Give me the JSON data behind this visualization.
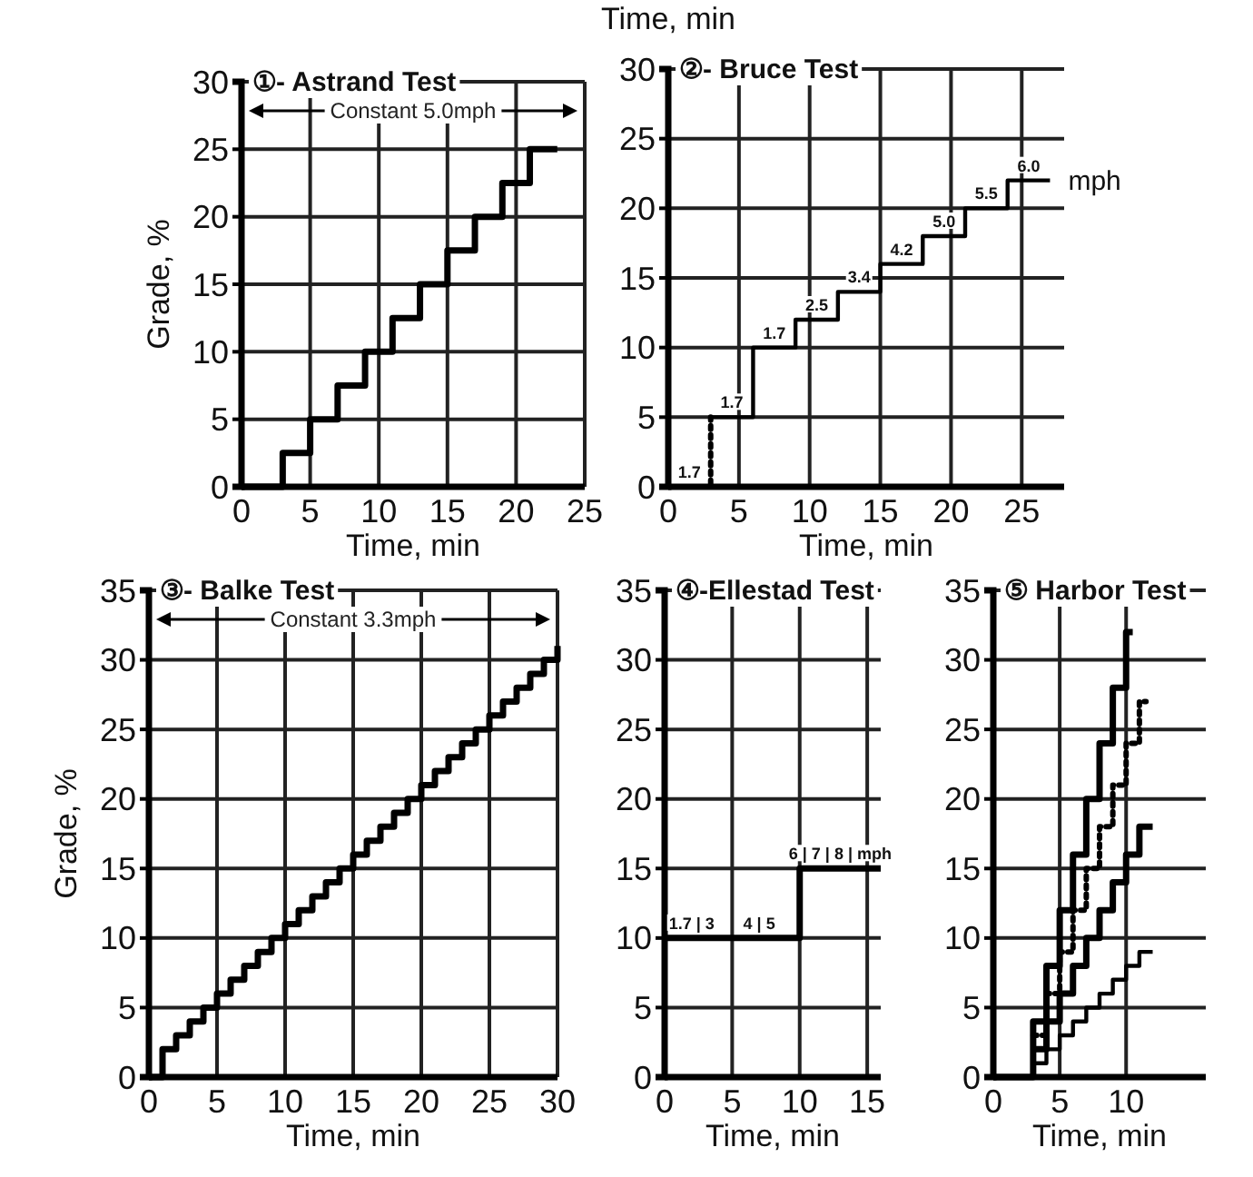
{
  "chart_data": [
    {
      "type": "step",
      "title": "①- Astrand Test",
      "xlabel": "Time, min",
      "ylabel": "Grade, %",
      "xlim": [
        0,
        25
      ],
      "ylim": [
        0,
        30
      ],
      "xticks": [
        0,
        5,
        10,
        15,
        20,
        25
      ],
      "yticks": [
        0,
        5,
        10,
        15,
        20,
        25,
        30
      ],
      "grid": true,
      "series": [
        {
          "color": "#000000",
          "line_style": "solid",
          "x": [
            0,
            3,
            5,
            7,
            9,
            11,
            13,
            15,
            17,
            19,
            21,
            23
          ],
          "values": [
            0,
            2.5,
            5,
            7.5,
            10,
            12.5,
            15,
            17.5,
            20,
            22.5,
            25,
            25
          ]
        }
      ],
      "annotations": [
        "Constant 5.0mph"
      ]
    },
    {
      "type": "step",
      "title": "②- Bruce Test",
      "xlabel": "Time, min",
      "xlim": [
        0,
        28
      ],
      "ylim": [
        0,
        30
      ],
      "xticks": [
        0,
        5,
        10,
        15,
        20,
        25
      ],
      "yticks": [
        0,
        5,
        10,
        15,
        20,
        25,
        30
      ],
      "grid": true,
      "series": [
        {
          "color": "#000000",
          "line_style": "dotted",
          "x": [
            0,
            3
          ],
          "values": [
            0,
            5
          ]
        },
        {
          "color": "#000000",
          "line_style": "solid",
          "x": [
            3,
            6,
            9,
            12,
            15,
            18,
            21,
            24,
            27
          ],
          "values": [
            5,
            10,
            12,
            14,
            16,
            18,
            20,
            22,
            22
          ]
        }
      ],
      "annotations": [
        "Time, min",
        {
          "text": "1.7",
          "x": 1.5,
          "y": 0
        },
        {
          "text": "1.7",
          "x": 4.5,
          "y": 5
        },
        {
          "text": "1.7",
          "x": 7.5,
          "y": 10
        },
        {
          "text": "2.5",
          "x": 10.5,
          "y": 12
        },
        {
          "text": "3.4",
          "x": 13.5,
          "y": 14
        },
        {
          "text": "4.2",
          "x": 16.5,
          "y": 16
        },
        {
          "text": "5.0",
          "x": 19.5,
          "y": 18
        },
        {
          "text": "5.5",
          "x": 22.5,
          "y": 20
        },
        {
          "text": "6.0",
          "x": 25.5,
          "y": 22
        },
        "mph"
      ]
    },
    {
      "type": "step",
      "title": "③- Balke Test",
      "xlabel": "Time, min",
      "ylabel": "Grade, %",
      "xlim": [
        0,
        30
      ],
      "ylim": [
        0,
        35
      ],
      "xticks": [
        0,
        5,
        10,
        15,
        20,
        25,
        30
      ],
      "yticks": [
        0,
        5,
        10,
        15,
        20,
        25,
        30,
        35
      ],
      "grid": true,
      "series": [
        {
          "color": "#000000",
          "line_style": "solid",
          "x": [
            0,
            1,
            2,
            3,
            4,
            5,
            6,
            7,
            8,
            9,
            10,
            11,
            12,
            13,
            14,
            15,
            16,
            17,
            18,
            19,
            20,
            21,
            22,
            23,
            24,
            25,
            26,
            27,
            28,
            29,
            30
          ],
          "values": [
            0,
            2,
            3,
            4,
            5,
            6,
            7,
            8,
            9,
            10,
            11,
            12,
            13,
            14,
            15,
            16,
            17,
            18,
            19,
            20,
            21,
            22,
            23,
            24,
            25,
            26,
            27,
            28,
            29,
            30,
            31
          ]
        }
      ],
      "annotations": [
        "Constant 3.3mph"
      ]
    },
    {
      "type": "step",
      "title": "④-Ellestad Test",
      "xlabel": "Time, min",
      "xlim": [
        0,
        16
      ],
      "ylim": [
        0,
        35
      ],
      "xticks": [
        0,
        5,
        10,
        15
      ],
      "yticks": [
        0,
        5,
        10,
        15,
        20,
        25,
        30,
        35
      ],
      "grid": true,
      "series": [
        {
          "color": "#000000",
          "line_style": "solid",
          "x": [
            0,
            10,
            16
          ],
          "values": [
            10,
            15,
            15
          ]
        }
      ],
      "annotations": [
        {
          "text": "1.7 | 3",
          "x": 2,
          "y": 10
        },
        {
          "text": "4 | 5",
          "x": 7,
          "y": 10
        },
        {
          "text": "6 | 7 | 8 | mph",
          "x": 13,
          "y": 15
        }
      ]
    },
    {
      "type": "step",
      "title": "⑤ Harbor Test",
      "xlabel": "Time, min",
      "xlim": [
        0,
        16
      ],
      "ylim": [
        0,
        35
      ],
      "xticks": [
        0,
        5,
        10
      ],
      "yticks": [
        0,
        5,
        10,
        15,
        20,
        25,
        30,
        35
      ],
      "grid": true,
      "series": [
        {
          "color": "#000000",
          "line_style": "solid",
          "x": [
            0,
            3,
            4,
            5,
            6,
            7,
            8,
            9,
            10,
            10.5
          ],
          "values": [
            0,
            4,
            8,
            12,
            16,
            20,
            24,
            28,
            32,
            32
          ]
        },
        {
          "color": "#000000",
          "line_style": "dotted",
          "x": [
            3,
            4,
            5,
            6,
            7,
            8,
            9,
            10,
            11,
            11.5
          ],
          "values": [
            3,
            6,
            9,
            12,
            15,
            18,
            21,
            24,
            27,
            27
          ]
        },
        {
          "color": "#000000",
          "line_style": "solid",
          "x": [
            3,
            4,
            5,
            6,
            7,
            8,
            9,
            10,
            11,
            12
          ],
          "values": [
            2,
            4,
            6,
            8,
            10,
            12,
            14,
            16,
            18,
            18
          ]
        },
        {
          "color": "#000000",
          "line_style": "solid",
          "x": [
            3,
            4,
            5,
            6,
            7,
            8,
            9,
            10,
            11,
            12
          ],
          "values": [
            1,
            2,
            3,
            4,
            5,
            6,
            7,
            8,
            9,
            9
          ]
        }
      ]
    }
  ]
}
